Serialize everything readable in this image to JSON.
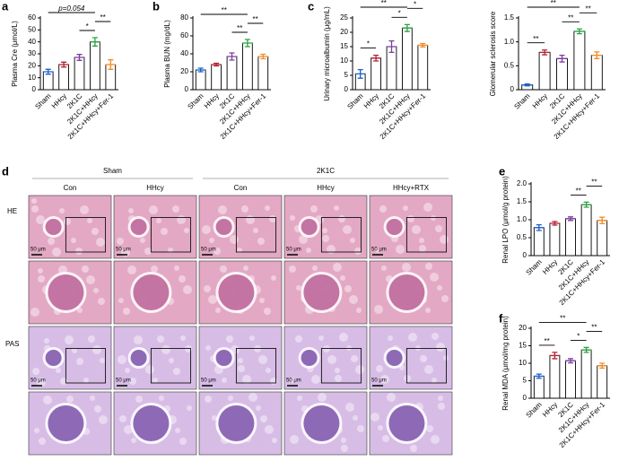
{
  "chart_data": [
    {
      "type": "bar",
      "label": "a",
      "ylabel": "Plasma Cre (μmol/L)",
      "categories": [
        "Sham",
        "HHcy",
        "2K1C",
        "2K1C+HHcy",
        "2K1C+HHcy+Fer-1"
      ],
      "values": [
        15,
        21,
        27,
        40,
        21
      ],
      "errors": [
        2,
        2,
        2.5,
        3.5,
        4
      ],
      "colors": [
        "#1f5fc8",
        "#b22234",
        "#7b3f9e",
        "#2ea043",
        "#f28c28"
      ],
      "ylim": [
        0,
        60
      ],
      "yticks": [
        0,
        10,
        20,
        30,
        40,
        50,
        60
      ],
      "brackets": [
        {
          "text": "*",
          "from": "2K1C",
          "to": "2K1C+HHcy"
        },
        {
          "text": "**",
          "from": "2K1C+HHcy",
          "to": "2K1C+HHcy+Fer-1"
        },
        {
          "text": "p=0.054",
          "from": "Sham",
          "to": "2K1C+HHcy"
        }
      ]
    },
    {
      "type": "bar",
      "label": "b",
      "ylabel": "Plasma BUN (mg/dL)",
      "categories": [
        "Sham",
        "HHcy",
        "2K1C",
        "2K1C+HHcy",
        "2K1C+HHcy+Fer-1"
      ],
      "values": [
        22,
        28,
        37,
        52,
        37
      ],
      "errors": [
        2,
        1.5,
        4,
        4,
        2.5
      ],
      "colors": [
        "#1f5fc8",
        "#b22234",
        "#7b3f9e",
        "#2ea043",
        "#f28c28"
      ],
      "ylim": [
        0,
        80
      ],
      "yticks": [
        0,
        20,
        40,
        60,
        80
      ],
      "brackets": [
        {
          "text": "**",
          "from": "2K1C",
          "to": "2K1C+HHcy"
        },
        {
          "text": "**",
          "from": "2K1C+HHcy",
          "to": "2K1C+HHcy+Fer-1"
        },
        {
          "text": "**",
          "from": "Sham",
          "to": "2K1C+HHcy"
        }
      ]
    },
    {
      "type": "bar",
      "label": "c",
      "ylabel": "Urinary microalbumin (μg/mL)",
      "categories": [
        "Sham",
        "HHcy",
        "2K1C",
        "2K1C+HHcy",
        "2K1C+HHcy+Fer-1"
      ],
      "values": [
        5.5,
        11,
        15,
        21.5,
        15.5
      ],
      "errors": [
        1.5,
        1,
        2,
        1.2,
        0.6
      ],
      "colors": [
        "#1f5fc8",
        "#b22234",
        "#7b3f9e",
        "#2ea043",
        "#f28c28"
      ],
      "ylim": [
        0,
        25
      ],
      "yticks": [
        0,
        5,
        10,
        15,
        20,
        25
      ],
      "brackets": [
        {
          "text": "*",
          "from": "Sham",
          "to": "HHcy"
        },
        {
          "text": "*",
          "from": "2K1C",
          "to": "2K1C+HHcy"
        },
        {
          "text": "*",
          "from": "2K1C+HHcy",
          "to": "2K1C+HHcy+Fer-1"
        },
        {
          "text": "**",
          "from": "Sham",
          "to": "2K1C+HHcy"
        }
      ]
    },
    {
      "type": "bar",
      "ylabel": "Glomerular sclerosis score",
      "categories": [
        "Sham",
        "HHcy",
        "2K1C",
        "2K1C+HHcy",
        "2K1C+HHcy+Fer-1"
      ],
      "values": [
        0.1,
        0.78,
        0.65,
        1.22,
        0.72
      ],
      "errors": [
        0.02,
        0.05,
        0.07,
        0.05,
        0.07
      ],
      "colors": [
        "#1f5fc8",
        "#b22234",
        "#7b3f9e",
        "#2ea043",
        "#f28c28"
      ],
      "ylim": [
        0,
        1.5
      ],
      "yticks": [
        0,
        0.5,
        {
          "value": 1,
          "label": "1.0"
        },
        1.5
      ],
      "brackets": [
        {
          "text": "**",
          "from": "Sham",
          "to": "HHcy"
        },
        {
          "text": "**",
          "from": "2K1C",
          "to": "2K1C+HHcy"
        },
        {
          "text": "**",
          "from": "2K1C+HHcy",
          "to": "2K1C+HHcy+Fer-1"
        },
        {
          "text": "**",
          "from": "Sham",
          "to": "2K1C+HHcy"
        }
      ]
    },
    {
      "type": "bar",
      "label": "e",
      "ylabel": "Renal LPO (μmol/g protein)",
      "categories": [
        "Sham",
        "HHcy",
        "2K1C",
        "2K1C+HHcy",
        "2K1C+HHcy+Fer-1"
      ],
      "values": [
        0.78,
        0.9,
        1.03,
        1.42,
        0.98
      ],
      "errors": [
        0.08,
        0.05,
        0.05,
        0.07,
        0.09
      ],
      "colors": [
        "#1f5fc8",
        "#b22234",
        "#7b3f9e",
        "#2ea043",
        "#f28c28"
      ],
      "ylim": [
        0,
        2
      ],
      "yticks": [
        0,
        0.5,
        {
          "value": 1,
          "label": "1.0"
        },
        1.5,
        {
          "value": 2,
          "label": "2.0"
        }
      ],
      "brackets": [
        {
          "text": "**",
          "from": "2K1C",
          "to": "2K1C+HHcy"
        },
        {
          "text": "**",
          "from": "2K1C+HHcy",
          "to": "2K1C+HHcy+Fer-1"
        }
      ]
    },
    {
      "type": "bar",
      "label": "f",
      "ylabel": "Renal MDA (μmol/mg protein)",
      "categories": [
        "Sham",
        "HHcy",
        "2K1C",
        "2K1C+HHcy",
        "2K1C+HHcy+Fer-1"
      ],
      "values": [
        6.3,
        12.2,
        10.7,
        13.8,
        9.3
      ],
      "errors": [
        0.6,
        0.9,
        0.6,
        0.7,
        0.7
      ],
      "colors": [
        "#1f5fc8",
        "#b22234",
        "#7b3f9e",
        "#2ea043",
        "#f28c28"
      ],
      "ylim": [
        0,
        20
      ],
      "yticks": [
        0,
        5,
        10,
        15,
        20
      ],
      "brackets": [
        {
          "text": "**",
          "from": "Sham",
          "to": "HHcy"
        },
        {
          "text": "*",
          "from": "2K1C",
          "to": "2K1C+HHcy"
        },
        {
          "text": "**",
          "from": "2K1C+HHcy",
          "to": "2K1C+HHcy+Fer-1"
        },
        {
          "text": "**",
          "from": "Sham",
          "to": "2K1C+HHcy"
        }
      ]
    }
  ],
  "histology": {
    "label": "d",
    "groups": [
      "Sham",
      "2K1C"
    ],
    "columns": [
      "Con",
      "HHcy",
      "Con",
      "HHcy",
      "HHcy+RTX"
    ],
    "rows": [
      "HE",
      "PAS"
    ],
    "scale": "50 μm"
  }
}
